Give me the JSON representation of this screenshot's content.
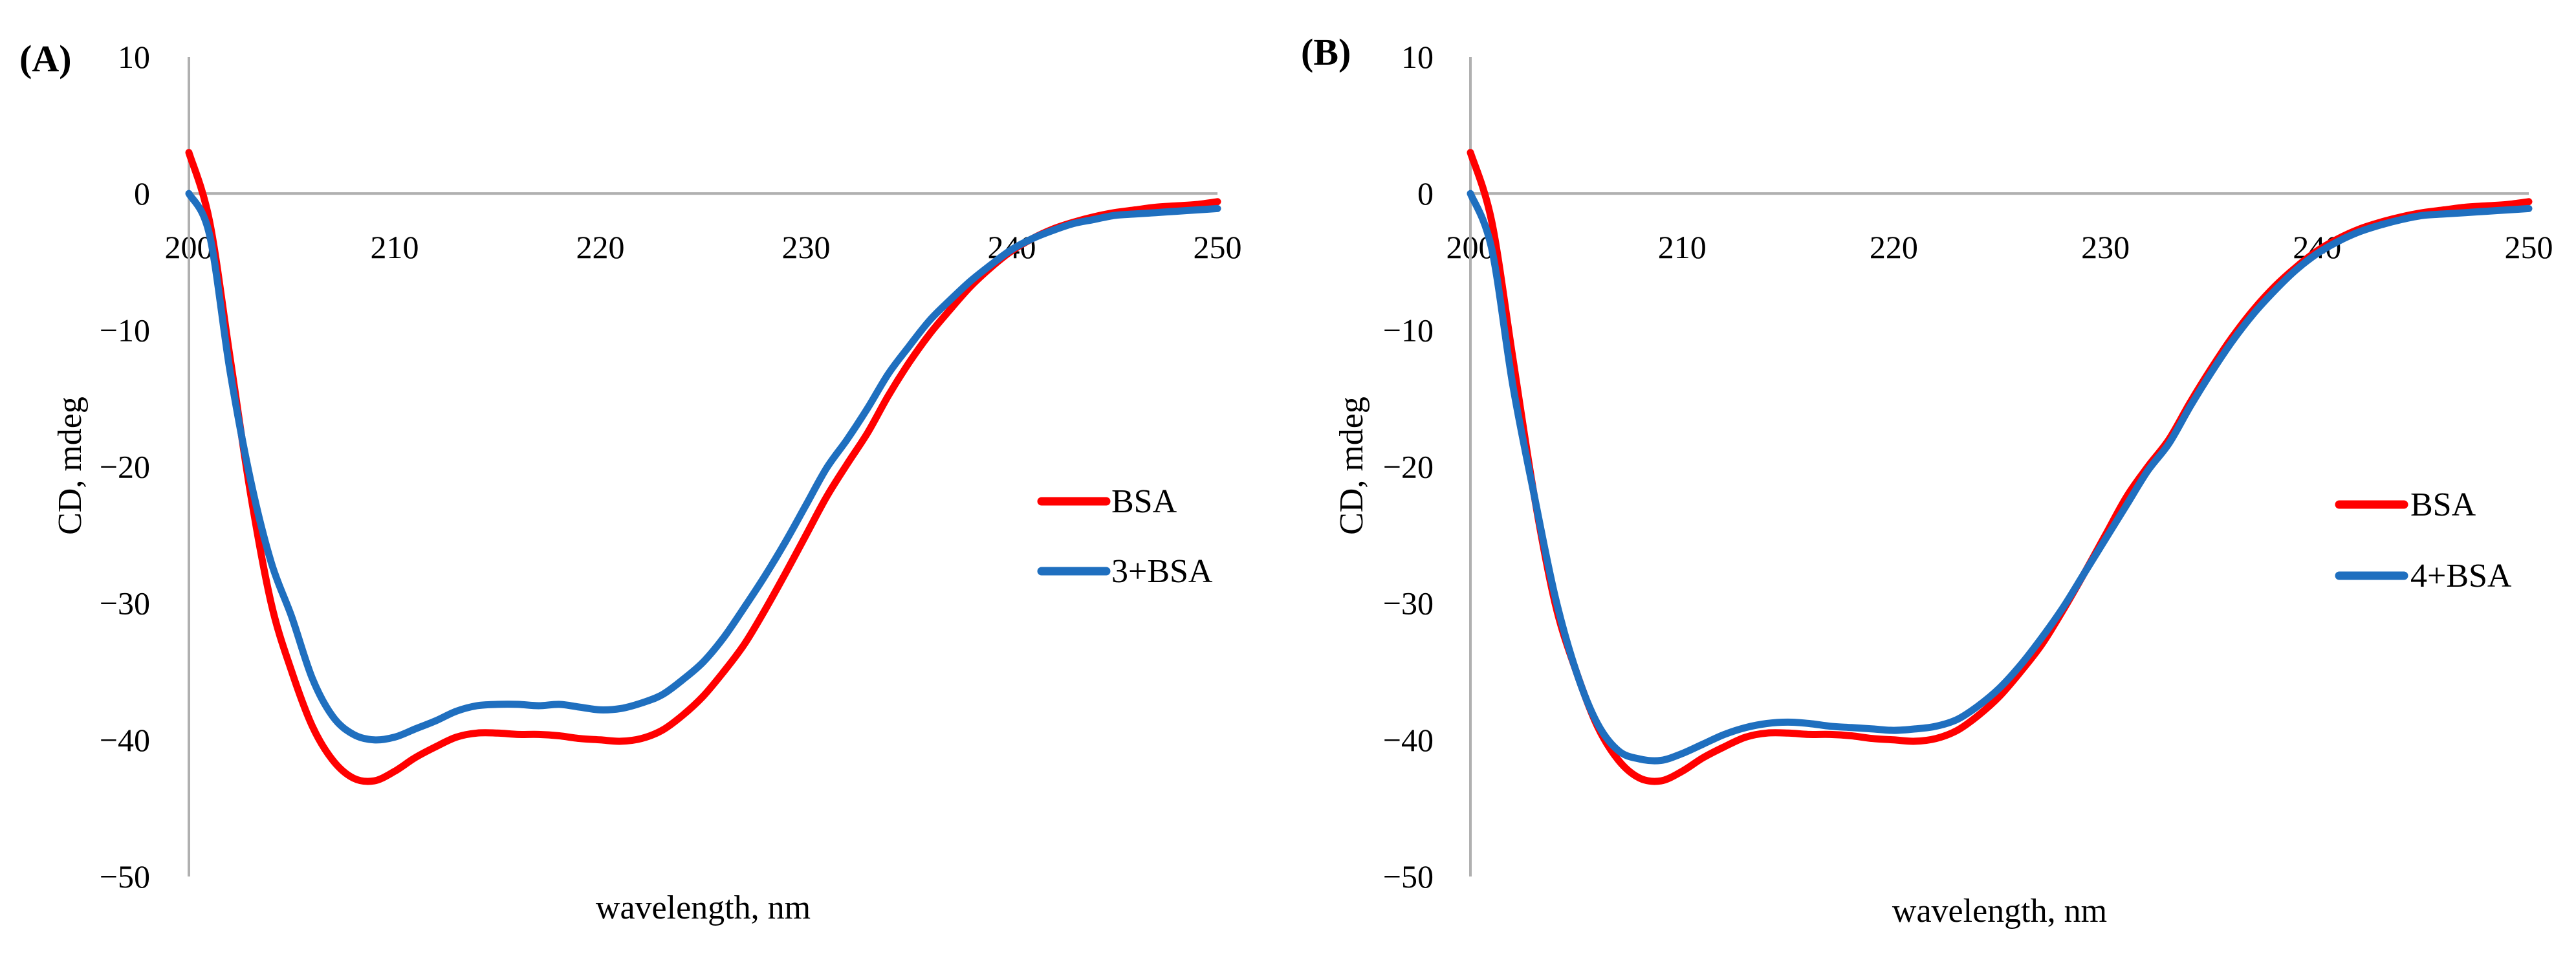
{
  "chart_data": [
    {
      "type": "line",
      "panel_label": "(A)",
      "title": "",
      "xlabel": "wavelength, nm",
      "ylabel": "CD, mdeg",
      "xlim": [
        200,
        250
      ],
      "ylim": [
        -50,
        10
      ],
      "x_ticks": [
        "200",
        "210",
        "220",
        "230",
        "240",
        "250"
      ],
      "y_ticks": [
        "10",
        "0",
        "−10",
        "−20",
        "−30",
        "−40",
        "−50"
      ],
      "grid": false,
      "legend_position": "right",
      "series": [
        {
          "name": "BSA",
          "color": "#ff0000",
          "x": [
            200,
            201,
            202,
            203,
            204,
            205,
            206,
            207,
            208,
            209,
            210,
            211,
            212,
            213,
            214,
            215,
            216,
            217,
            218,
            219,
            220,
            221,
            222,
            223,
            224,
            225,
            226,
            227,
            228,
            229,
            230,
            231,
            232,
            233,
            234,
            235,
            236,
            237,
            238,
            239,
            240,
            241,
            242,
            243,
            244,
            245,
            246,
            247,
            248,
            249,
            250
          ],
          "y": [
            3,
            -2,
            -12,
            -22,
            -30,
            -35,
            -39,
            -41.5,
            -42.8,
            -43,
            -42.3,
            -41.3,
            -40.5,
            -39.8,
            -39.5,
            -39.5,
            -39.6,
            -39.6,
            -39.7,
            -39.9,
            -40,
            -40.1,
            -39.9,
            -39.3,
            -38.2,
            -36.8,
            -35,
            -33,
            -30.5,
            -27.8,
            -25,
            -22.2,
            -19.8,
            -17.5,
            -14.8,
            -12.4,
            -10.3,
            -8.5,
            -6.8,
            -5.4,
            -4.2,
            -3.3,
            -2.6,
            -2.1,
            -1.7,
            -1.4,
            -1.2,
            -1.0,
            -0.9,
            -0.8,
            -0.6
          ]
        },
        {
          "name": "3+BSA",
          "color": "#1f6fbf",
          "x": [
            200,
            201,
            202,
            203,
            204,
            205,
            206,
            207,
            208,
            209,
            210,
            211,
            212,
            213,
            214,
            215,
            216,
            217,
            218,
            219,
            220,
            221,
            222,
            223,
            224,
            225,
            226,
            227,
            228,
            229,
            230,
            231,
            232,
            233,
            234,
            235,
            236,
            237,
            238,
            239,
            240,
            241,
            242,
            243,
            244,
            245,
            246,
            247,
            248,
            249,
            250
          ],
          "y": [
            0,
            -3,
            -13,
            -21,
            -27,
            -31,
            -35.5,
            -38.3,
            -39.6,
            -40,
            -39.8,
            -39.2,
            -38.6,
            -37.9,
            -37.5,
            -37.4,
            -37.4,
            -37.5,
            -37.4,
            -37.6,
            -37.8,
            -37.7,
            -37.3,
            -36.7,
            -35.6,
            -34.3,
            -32.5,
            -30.3,
            -28,
            -25.5,
            -22.8,
            -20.1,
            -18.0,
            -15.7,
            -13.2,
            -11.2,
            -9.3,
            -7.8,
            -6.4,
            -5.2,
            -4.1,
            -3.3,
            -2.7,
            -2.2,
            -1.9,
            -1.6,
            -1.5,
            -1.4,
            -1.3,
            -1.2,
            -1.1
          ]
        }
      ]
    },
    {
      "type": "line",
      "panel_label": "(B)",
      "title": "",
      "xlabel": "wavelength, nm",
      "ylabel": "CD, mdeg",
      "xlim": [
        200,
        250
      ],
      "ylim": [
        -50,
        10
      ],
      "x_ticks": [
        "200",
        "210",
        "220",
        "230",
        "240",
        "250"
      ],
      "y_ticks": [
        "10",
        "0",
        "−10",
        "−20",
        "−30",
        "−40",
        "−50"
      ],
      "grid": false,
      "legend_position": "right",
      "series": [
        {
          "name": "BSA",
          "color": "#ff0000",
          "x": [
            200,
            201,
            202,
            203,
            204,
            205,
            206,
            207,
            208,
            209,
            210,
            211,
            212,
            213,
            214,
            215,
            216,
            217,
            218,
            219,
            220,
            221,
            222,
            223,
            224,
            225,
            226,
            227,
            228,
            229,
            230,
            231,
            232,
            233,
            234,
            235,
            236,
            237,
            238,
            239,
            240,
            241,
            242,
            243,
            244,
            245,
            246,
            247,
            248,
            249,
            250
          ],
          "y": [
            3,
            -2,
            -12,
            -22,
            -30,
            -35,
            -39,
            -41.5,
            -42.8,
            -43,
            -42.3,
            -41.3,
            -40.5,
            -39.8,
            -39.5,
            -39.5,
            -39.6,
            -39.6,
            -39.7,
            -39.9,
            -40,
            -40.1,
            -39.9,
            -39.3,
            -38.2,
            -36.8,
            -35,
            -33,
            -30.5,
            -27.8,
            -25,
            -22.2,
            -20,
            -18,
            -15.3,
            -12.8,
            -10.5,
            -8.5,
            -6.8,
            -5.4,
            -4.2,
            -3.3,
            -2.6,
            -2.1,
            -1.7,
            -1.4,
            -1.2,
            -1.0,
            -0.9,
            -0.8,
            -0.6
          ]
        },
        {
          "name": "4+BSA",
          "color": "#1f6fbf",
          "x": [
            200,
            201,
            202,
            203,
            204,
            205,
            206,
            207,
            208,
            209,
            210,
            211,
            212,
            213,
            214,
            215,
            216,
            217,
            218,
            219,
            220,
            221,
            222,
            223,
            224,
            225,
            226,
            227,
            228,
            229,
            230,
            231,
            232,
            233,
            234,
            235,
            236,
            237,
            238,
            239,
            240,
            241,
            242,
            243,
            244,
            245,
            246,
            247,
            248,
            249,
            250
          ],
          "y": [
            0,
            -4,
            -14,
            -22,
            -29.5,
            -35,
            -38.8,
            -40.8,
            -41.4,
            -41.5,
            -41,
            -40.3,
            -39.6,
            -39.1,
            -38.8,
            -38.7,
            -38.8,
            -39.0,
            -39.1,
            -39.2,
            -39.3,
            -39.2,
            -39.0,
            -38.5,
            -37.5,
            -36.2,
            -34.5,
            -32.5,
            -30.3,
            -27.8,
            -25.3,
            -22.8,
            -20.3,
            -18.3,
            -15.6,
            -13.1,
            -10.8,
            -8.8,
            -7.1,
            -5.6,
            -4.4,
            -3.5,
            -2.8,
            -2.3,
            -1.9,
            -1.6,
            -1.5,
            -1.4,
            -1.3,
            -1.2,
            -1.1
          ]
        }
      ]
    }
  ]
}
